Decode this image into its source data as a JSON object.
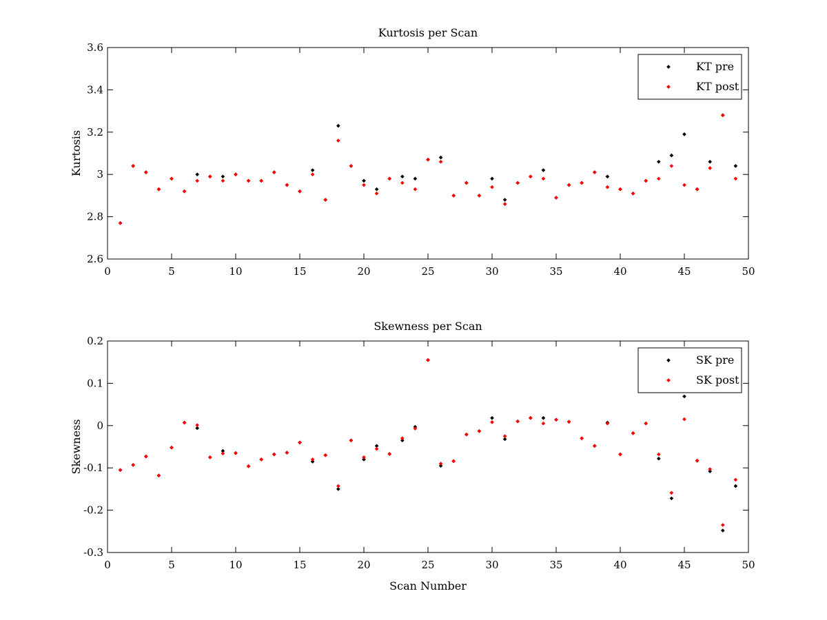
{
  "chart_data": [
    {
      "type": "scatter",
      "title": "Kurtosis per Scan",
      "xlabel": "",
      "ylabel": "Kurtosis",
      "xlim": [
        0,
        50
      ],
      "ylim": [
        2.6,
        3.6
      ],
      "xticks": [
        0,
        5,
        10,
        15,
        20,
        25,
        30,
        35,
        40,
        45,
        50
      ],
      "yticks": [
        2.6,
        2.8,
        3,
        3.2,
        3.4,
        3.6
      ],
      "ytick_labels": [
        "2.6",
        "2.8",
        "3",
        "3.2",
        "3.4",
        "3.6"
      ],
      "grid": false,
      "legend_position": "top-right",
      "x": [
        1,
        2,
        3,
        4,
        5,
        6,
        7,
        8,
        9,
        10,
        11,
        12,
        13,
        14,
        15,
        16,
        17,
        18,
        19,
        20,
        21,
        22,
        23,
        24,
        25,
        26,
        27,
        28,
        29,
        30,
        31,
        32,
        33,
        34,
        35,
        36,
        37,
        38,
        39,
        40,
        41,
        42,
        43,
        44,
        45,
        46,
        47,
        48,
        49
      ],
      "series": [
        {
          "name": "KT pre",
          "color": "#000000",
          "values": [
            2.77,
            3.04,
            3.01,
            2.93,
            2.98,
            2.92,
            3.0,
            2.99,
            2.99,
            3.0,
            2.97,
            2.97,
            3.01,
            2.95,
            2.92,
            3.02,
            2.88,
            3.23,
            3.04,
            2.97,
            2.93,
            2.98,
            2.99,
            2.98,
            3.07,
            3.08,
            2.9,
            2.96,
            2.9,
            2.98,
            2.88,
            2.96,
            2.99,
            3.02,
            2.89,
            2.95,
            2.96,
            3.01,
            2.99,
            2.93,
            2.91,
            2.97,
            3.06,
            3.09,
            3.19,
            2.93,
            3.06,
            3.28,
            3.04
          ]
        },
        {
          "name": "KT post",
          "color": "#ff0000",
          "values": [
            2.77,
            3.04,
            3.01,
            2.93,
            2.98,
            2.92,
            2.97,
            2.99,
            2.97,
            3.0,
            2.97,
            2.97,
            3.01,
            2.95,
            2.92,
            3.0,
            2.88,
            3.16,
            3.04,
            2.95,
            2.91,
            2.98,
            2.96,
            2.93,
            3.07,
            3.06,
            2.9,
            2.96,
            2.9,
            2.94,
            2.86,
            2.96,
            2.99,
            2.98,
            2.89,
            2.95,
            2.96,
            3.01,
            2.94,
            2.93,
            2.91,
            2.97,
            2.98,
            3.04,
            2.95,
            2.93,
            3.03,
            3.28,
            2.98
          ]
        }
      ]
    },
    {
      "type": "scatter",
      "title": "Skewness per Scan",
      "xlabel": "Scan Number",
      "ylabel": "Skewness",
      "xlim": [
        0,
        50
      ],
      "ylim": [
        -0.3,
        0.2
      ],
      "xticks": [
        0,
        5,
        10,
        15,
        20,
        25,
        30,
        35,
        40,
        45,
        50
      ],
      "yticks": [
        -0.3,
        -0.2,
        -0.1,
        0,
        0.1,
        0.2
      ],
      "ytick_labels": [
        "-0.3",
        "-0.2",
        "-0.1",
        "0",
        "0.1",
        "0.2"
      ],
      "grid": false,
      "legend_position": "top-right",
      "x": [
        1,
        2,
        3,
        4,
        5,
        6,
        7,
        8,
        9,
        10,
        11,
        12,
        13,
        14,
        15,
        16,
        17,
        18,
        19,
        20,
        21,
        22,
        23,
        24,
        25,
        26,
        27,
        28,
        29,
        30,
        31,
        32,
        33,
        34,
        35,
        36,
        37,
        38,
        39,
        40,
        41,
        42,
        43,
        44,
        45,
        46,
        47,
        48,
        49
      ],
      "series": [
        {
          "name": "SK pre",
          "color": "#000000",
          "values": [
            -0.105,
            -0.093,
            -0.073,
            -0.118,
            -0.052,
            0.007,
            -0.006,
            -0.075,
            -0.06,
            -0.065,
            -0.096,
            -0.08,
            -0.068,
            -0.064,
            -0.04,
            -0.085,
            -0.07,
            -0.15,
            -0.035,
            -0.08,
            -0.048,
            -0.067,
            -0.035,
            -0.003,
            0.155,
            -0.095,
            -0.084,
            -0.021,
            -0.013,
            0.018,
            -0.032,
            0.01,
            0.018,
            0.018,
            0.014,
            0.009,
            -0.03,
            -0.048,
            0.007,
            -0.068,
            -0.018,
            0.005,
            -0.078,
            -0.172,
            0.069,
            -0.083,
            -0.108,
            -0.248,
            -0.143
          ]
        },
        {
          "name": "SK post",
          "color": "#ff0000",
          "values": [
            -0.105,
            -0.093,
            -0.073,
            -0.118,
            -0.052,
            0.007,
            0.001,
            -0.075,
            -0.066,
            -0.065,
            -0.096,
            -0.08,
            -0.068,
            -0.064,
            -0.04,
            -0.08,
            -0.07,
            -0.143,
            -0.035,
            -0.075,
            -0.055,
            -0.067,
            -0.03,
            -0.007,
            0.155,
            -0.09,
            -0.084,
            -0.021,
            -0.013,
            0.008,
            -0.025,
            0.01,
            0.018,
            0.005,
            0.014,
            0.009,
            -0.03,
            -0.048,
            0.005,
            -0.068,
            -0.018,
            0.005,
            -0.068,
            -0.159,
            0.015,
            -0.083,
            -0.103,
            -0.235,
            -0.128
          ]
        }
      ]
    }
  ]
}
